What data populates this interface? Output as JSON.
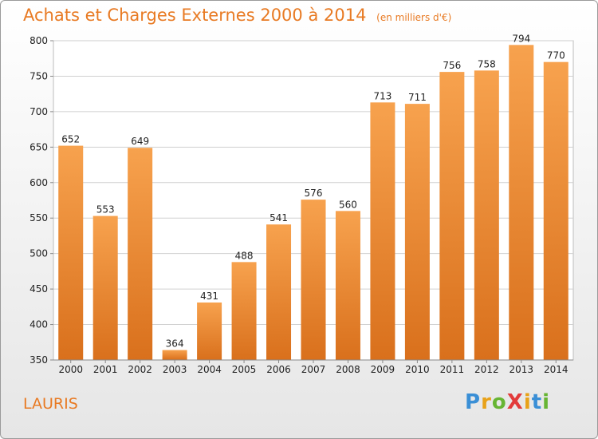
{
  "chart_data": {
    "type": "bar",
    "title": "Achats et Charges Externes 2000 à 2014",
    "subtitle": "(en milliers d'€)",
    "categories": [
      "2000",
      "2001",
      "2002",
      "2003",
      "2004",
      "2005",
      "2006",
      "2007",
      "2008",
      "2009",
      "2010",
      "2011",
      "2012",
      "2013",
      "2014"
    ],
    "values": [
      652,
      553,
      649,
      364,
      431,
      488,
      541,
      576,
      560,
      713,
      711,
      756,
      758,
      794,
      770
    ],
    "ylim": [
      350,
      800
    ],
    "yticks": [
      350,
      400,
      450,
      500,
      550,
      600,
      650,
      700,
      750,
      800
    ],
    "grid": true,
    "legend": "none",
    "bar_color_top": "#f7a24e",
    "bar_color_bottom": "#d9701c"
  },
  "footer": {
    "place": "LAURIS",
    "logo_text": "ProXiti",
    "logo_letters": [
      {
        "ch": "P",
        "color": "#3a8fd6"
      },
      {
        "ch": "r",
        "color": "#e8a21a"
      },
      {
        "ch": "o",
        "color": "#67b533"
      },
      {
        "ch": "X",
        "color": "#e23b3b"
      },
      {
        "ch": "i",
        "color": "#e8a21a"
      },
      {
        "ch": "t",
        "color": "#3a8fd6"
      },
      {
        "ch": "i",
        "color": "#67b533"
      }
    ]
  },
  "colors": {
    "accent": "#e87a23",
    "axis_text": "#222222",
    "grid": "#d0d0d0"
  }
}
